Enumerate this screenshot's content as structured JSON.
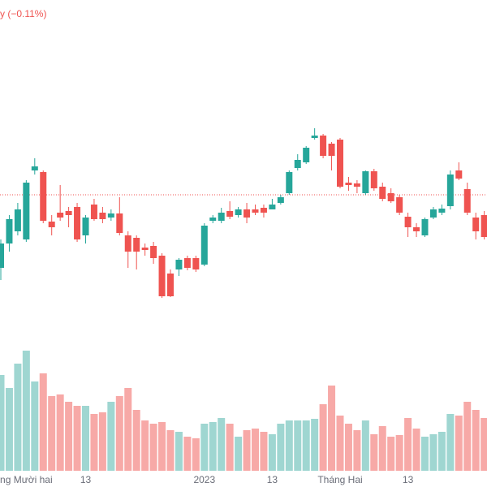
{
  "chart_data": {
    "type": "candlestick",
    "header": "y (−0.11%)",
    "categories": [
      null,
      null,
      null,
      "ng Mười hai",
      null,
      null,
      null,
      null,
      null,
      null,
      "13",
      null,
      null,
      null,
      null,
      null,
      null,
      null,
      null,
      null,
      null,
      null,
      null,
      null,
      "2023",
      null,
      null,
      null,
      null,
      null,
      null,
      null,
      "13",
      null,
      null,
      null,
      null,
      null,
      null,
      null,
      "Tháng Hai",
      null,
      null,
      null,
      null,
      null,
      null,
      null,
      "13",
      null,
      null,
      null,
      null,
      null,
      null,
      null,
      null,
      null
    ],
    "open": [
      270,
      300,
      315,
      305,
      390,
      388,
      327,
      338,
      340,
      345,
      310,
      348,
      338,
      332,
      337,
      310,
      307,
      295,
      297,
      285,
      263,
      268,
      282,
      282,
      274,
      328,
      328,
      340,
      335,
      342,
      342,
      344,
      342,
      350,
      362,
      393,
      400,
      430,
      433,
      423,
      428,
      375,
      374,
      362,
      389,
      370,
      362,
      357,
      333,
      320,
      310,
      332,
      338,
      346,
      390,
      367,
      332,
      335
    ],
    "high": [
      305,
      335,
      350,
      378,
      405,
      390,
      335,
      372,
      345,
      350,
      335,
      355,
      345,
      342,
      357,
      315,
      310,
      300,
      302,
      288,
      268,
      282,
      285,
      285,
      325,
      335,
      344,
      352,
      345,
      350,
      348,
      348,
      355,
      360,
      390,
      410,
      420,
      442,
      435,
      425,
      430,
      382,
      378,
      390,
      392,
      375,
      368,
      360,
      338,
      325,
      332,
      345,
      348,
      390,
      400,
      375,
      338,
      340
    ],
    "low": [
      255,
      290,
      310,
      302,
      385,
      325,
      310,
      328,
      320,
      302,
      300,
      328,
      325,
      328,
      310,
      270,
      268,
      285,
      275,
      233,
      234,
      260,
      267,
      265,
      272,
      325,
      325,
      330,
      332,
      325,
      335,
      332,
      342,
      348,
      360,
      390,
      398,
      428,
      405,
      390,
      368,
      365,
      362,
      360,
      365,
      352,
      350,
      335,
      308,
      308,
      308,
      330,
      335,
      342,
      378,
      335,
      305,
      305
    ],
    "close": [
      300,
      330,
      342,
      375,
      395,
      328,
      320,
      332,
      335,
      305,
      332,
      330,
      330,
      337,
      313,
      290,
      290,
      292,
      282,
      235,
      235,
      280,
      270,
      268,
      322,
      332,
      338,
      333,
      342,
      332,
      338,
      338,
      348,
      357,
      388,
      403,
      418,
      433,
      408,
      408,
      370,
      372,
      370,
      389,
      368,
      355,
      352,
      338,
      320,
      315,
      330,
      342,
      343,
      385,
      380,
      338,
      315,
      308
    ],
    "volume": [
      118,
      102,
      132,
      148,
      110,
      120,
      92,
      94,
      85,
      80,
      80,
      70,
      72,
      85,
      92,
      102,
      75,
      62,
      58,
      60,
      50,
      48,
      42,
      40,
      58,
      60,
      65,
      58,
      42,
      50,
      52,
      48,
      45,
      58,
      62,
      62,
      62,
      64,
      82,
      105,
      68,
      58,
      50,
      62,
      45,
      55,
      42,
      44,
      65,
      52,
      42,
      45,
      48,
      70,
      68,
      85,
      75,
      65
    ],
    "ylim": [
      0,
      600
    ],
    "volume_lim": [
      0,
      600
    ],
    "last_price_line": 360,
    "up_color": "#26a69a",
    "down_color": "#ef5350",
    "up_volume_color": "#9fd6d1",
    "down_volume_color": "#f7a9a7"
  }
}
